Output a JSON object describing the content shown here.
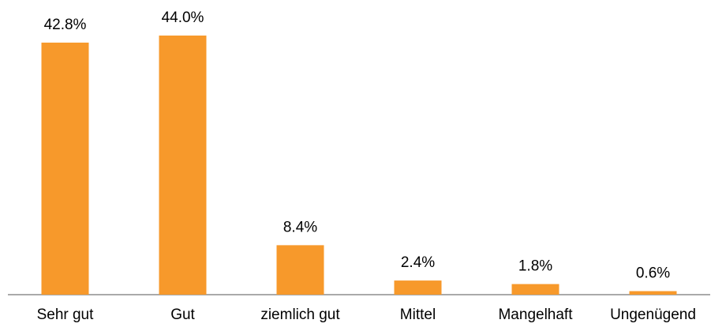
{
  "chart_data": {
    "type": "bar",
    "categories": [
      "Sehr gut",
      "Gut",
      "ziemlich gut",
      "Mittel",
      "Mangelhaft",
      "Ungenügend"
    ],
    "values": [
      42.8,
      44.0,
      8.4,
      2.4,
      1.8,
      0.6
    ],
    "value_labels": [
      "42.8%",
      "44.0%",
      "8.4%",
      "2.4%",
      "1.8%",
      "0.6%"
    ],
    "color": "#f7992b"
  }
}
